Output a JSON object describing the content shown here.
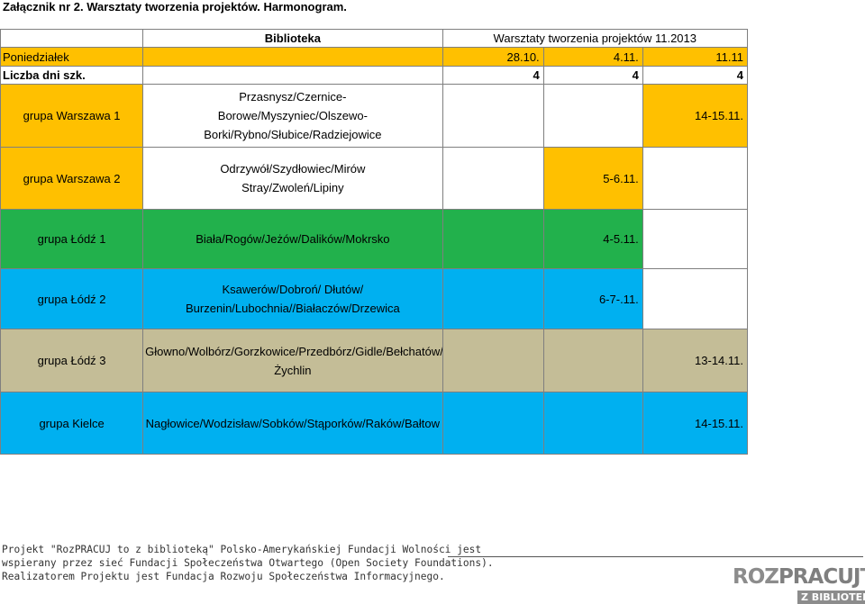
{
  "title": "Załącznik nr 2. Warsztaty tworzenia projektów. Harmonogram.",
  "table": {
    "header": {
      "location": "Biblioteka",
      "workshop": "Warsztaty tworzenia projektów 11.2013"
    },
    "weekday": {
      "label": "Poniedziałek",
      "dates": [
        "28.10.",
        "4.11.",
        "11.11"
      ]
    },
    "days": {
      "label": "Liczba dni szk.",
      "values": [
        "4",
        "4",
        "4"
      ]
    },
    "groups": [
      {
        "name": "grupa Warszawa 1",
        "places": "Przasnysz/Czernice-Borowe/Myszyniec/Olszewo-Borki/Rybno/Słubice/Radziejowice",
        "d1": "",
        "d2": "",
        "d3": "14-15.11."
      },
      {
        "name": "grupa Warszawa 2",
        "places": "Odrzywół/Szydłowiec/Mirów Stray/Zwoleń/Lipiny",
        "d1": "",
        "d2": "5-6.11.",
        "d3": ""
      },
      {
        "name": "grupa Łódź 1",
        "places": "Biała/Rogów/Jeżów/Dalików/Mokrsko",
        "d1": "",
        "d2": "4-5.11.",
        "d3": ""
      },
      {
        "name": "grupa Łódź 2",
        "places": "Ksawerów/Dobroń/ Dłutów/ Burzenin/Lubochnia//Białaczów/Drzewica",
        "d1": "",
        "d2": "6-7-.11.",
        "d3": ""
      },
      {
        "name": "grupa Łódź 3",
        "places": "Głowno/Wolbórz/Gorzkowice/Przedbórz/Gidle/Bełchatów/Żychlin",
        "d1": "",
        "d2": "",
        "d3": "13-14.11."
      },
      {
        "name": "grupa Kielce",
        "places": "Nagłowice/Wodzisław/Sobków/Stąporków/Raków/Bałtow",
        "d1": "",
        "d2": "",
        "d3": "14-15.11."
      }
    ]
  },
  "footer": {
    "line1": "Projekt \"RozPRACUJ to z biblioteką\" Polsko-Amerykańskiej Fundacji Wolności jest",
    "line2": "wspierany przez sieć Fundacji Społeczeństwa Otwartego (Open Society Foundations).",
    "line3": "Realizatorem Projektu jest Fundacja Rozwoju Społeczeństwa Informacyjnego."
  },
  "logo": {
    "main_a": "ROZ",
    "main_b": "PRACUJ",
    "main_c": "TO",
    "sub": "Z BIBLIOTEKĄ"
  },
  "colors": {
    "warszawa": "#ffc000",
    "lodz1": "#22b14c",
    "lodz2": "#00b0f0",
    "lodz3": "#c4bd97",
    "kielce": "#00b0f0"
  }
}
